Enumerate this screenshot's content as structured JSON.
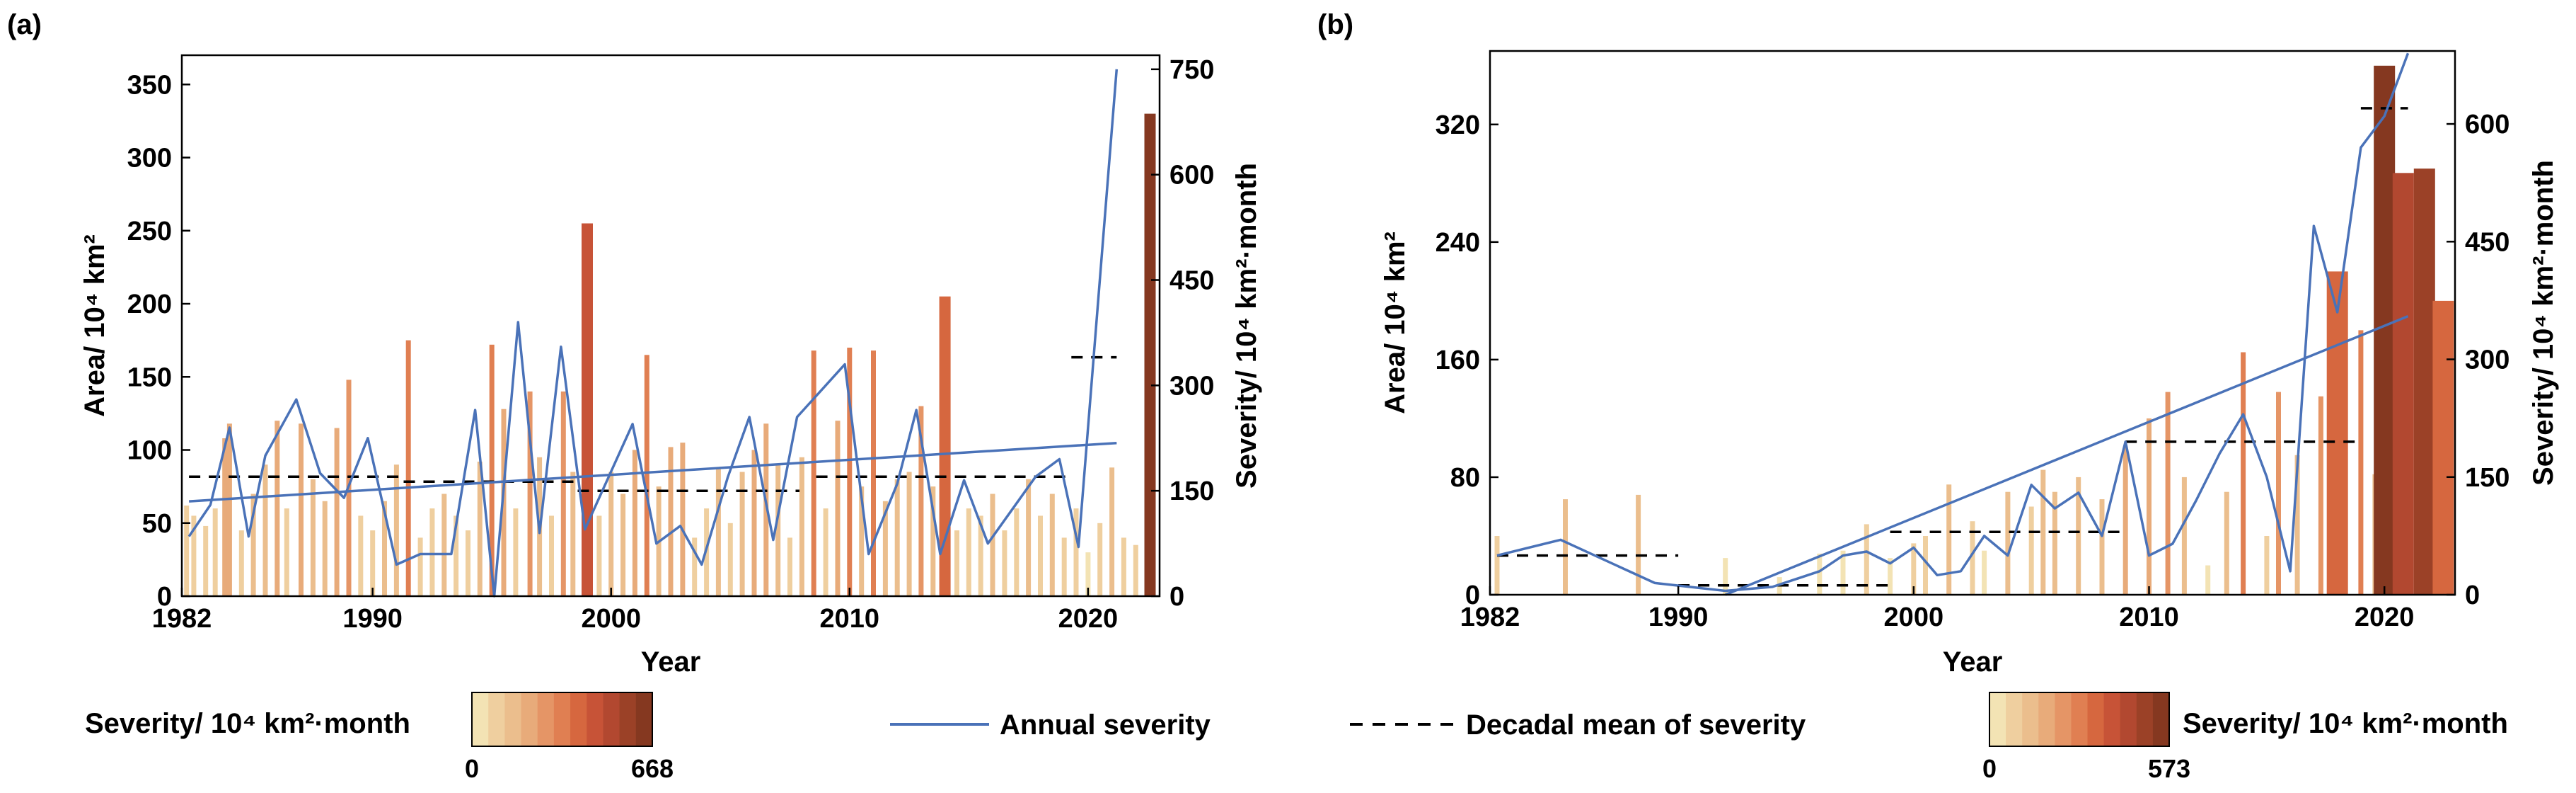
{
  "chart_data": [
    {
      "type": "bar",
      "panel_label": "(a)",
      "xlabel": "Year",
      "ylabel": "Area/ 10⁴ km²",
      "ylabel_right": "Severity/ 10⁴ km²·month",
      "xlim": [
        1982,
        2023
      ],
      "ylim": [
        0,
        370
      ],
      "ylim_right": [
        0,
        770
      ],
      "x_ticks": [
        "1982",
        "1990",
        "2000",
        "2010",
        "2020"
      ],
      "y_ticks": [
        "0",
        "50",
        "100",
        "150",
        "200",
        "250",
        "300",
        "350"
      ],
      "y_ticks_right": [
        "0",
        "150",
        "300",
        "450",
        "600",
        "750"
      ],
      "colorbar": {
        "label": "Severity/ 10⁴ km²·month",
        "min": "0",
        "max": "668"
      },
      "bars": [
        {
          "x": 1982.2,
          "y": 62
        },
        {
          "x": 1982.5,
          "y": 55
        },
        {
          "x": 1983.0,
          "y": 48
        },
        {
          "x": 1983.4,
          "y": 60
        },
        {
          "x": 1983.8,
          "y": 108
        },
        {
          "x": 1984.0,
          "y": 118
        },
        {
          "x": 1984.5,
          "y": 45
        },
        {
          "x": 1985.0,
          "y": 70
        },
        {
          "x": 1985.5,
          "y": 90
        },
        {
          "x": 1986.0,
          "y": 120
        },
        {
          "x": 1986.4,
          "y": 60
        },
        {
          "x": 1987.0,
          "y": 118
        },
        {
          "x": 1987.5,
          "y": 80
        },
        {
          "x": 1988.0,
          "y": 65
        },
        {
          "x": 1988.5,
          "y": 115
        },
        {
          "x": 1989.0,
          "y": 148
        },
        {
          "x": 1989.5,
          "y": 55
        },
        {
          "x": 1990.0,
          "y": 45
        },
        {
          "x": 1990.5,
          "y": 65
        },
        {
          "x": 1991.0,
          "y": 90
        },
        {
          "x": 1991.5,
          "y": 175
        },
        {
          "x": 1992.0,
          "y": 40
        },
        {
          "x": 1992.5,
          "y": 60
        },
        {
          "x": 1993.0,
          "y": 70
        },
        {
          "x": 1993.5,
          "y": 55
        },
        {
          "x": 1994.0,
          "y": 45
        },
        {
          "x": 1994.5,
          "y": 92
        },
        {
          "x": 1995.0,
          "y": 172
        },
        {
          "x": 1995.5,
          "y": 128
        },
        {
          "x": 1996.0,
          "y": 60
        },
        {
          "x": 1996.6,
          "y": 140
        },
        {
          "x": 1997.0,
          "y": 95
        },
        {
          "x": 1997.5,
          "y": 55
        },
        {
          "x": 1998.0,
          "y": 140
        },
        {
          "x": 1998.4,
          "y": 85
        },
        {
          "x": 1999.0,
          "y": 255
        },
        {
          "x": 1999.5,
          "y": 55
        },
        {
          "x": 2000.0,
          "y": 85
        },
        {
          "x": 2000.5,
          "y": 70
        },
        {
          "x": 2001.0,
          "y": 100
        },
        {
          "x": 2001.5,
          "y": 165
        },
        {
          "x": 2002.0,
          "y": 75
        },
        {
          "x": 2002.5,
          "y": 102
        },
        {
          "x": 2003.0,
          "y": 105
        },
        {
          "x": 2003.5,
          "y": 40
        },
        {
          "x": 2004.0,
          "y": 60
        },
        {
          "x": 2004.5,
          "y": 88
        },
        {
          "x": 2005.0,
          "y": 50
        },
        {
          "x": 2005.5,
          "y": 85
        },
        {
          "x": 2006.0,
          "y": 100
        },
        {
          "x": 2006.5,
          "y": 118
        },
        {
          "x": 2007.0,
          "y": 90
        },
        {
          "x": 2007.5,
          "y": 40
        },
        {
          "x": 2008.0,
          "y": 95
        },
        {
          "x": 2008.5,
          "y": 168
        },
        {
          "x": 2009.0,
          "y": 60
        },
        {
          "x": 2009.5,
          "y": 120
        },
        {
          "x": 2010.0,
          "y": 170
        },
        {
          "x": 2010.5,
          "y": 75
        },
        {
          "x": 2011.0,
          "y": 168
        },
        {
          "x": 2011.5,
          "y": 65
        },
        {
          "x": 2012.0,
          "y": 80
        },
        {
          "x": 2012.5,
          "y": 85
        },
        {
          "x": 2013.0,
          "y": 130
        },
        {
          "x": 2013.5,
          "y": 75
        },
        {
          "x": 2014.0,
          "y": 205
        },
        {
          "x": 2014.5,
          "y": 45
        },
        {
          "x": 2015.0,
          "y": 60
        },
        {
          "x": 2015.5,
          "y": 55
        },
        {
          "x": 2016.0,
          "y": 70
        },
        {
          "x": 2016.5,
          "y": 45
        },
        {
          "x": 2017.0,
          "y": 60
        },
        {
          "x": 2017.5,
          "y": 80
        },
        {
          "x": 2018.0,
          "y": 55
        },
        {
          "x": 2018.5,
          "y": 70
        },
        {
          "x": 2019.0,
          "y": 40
        },
        {
          "x": 2019.5,
          "y": 60
        },
        {
          "x": 2020.0,
          "y": 30
        },
        {
          "x": 2020.5,
          "y": 50
        },
        {
          "x": 2021.0,
          "y": 88
        },
        {
          "x": 2021.5,
          "y": 40
        },
        {
          "x": 2022.0,
          "y": 35
        },
        {
          "x": 2022.6,
          "y": 330
        }
      ],
      "annual_severity": [
        {
          "x": 1982.3,
          "y": 85
        },
        {
          "x": 1983.2,
          "y": 130
        },
        {
          "x": 1984.0,
          "y": 240
        },
        {
          "x": 1984.8,
          "y": 85
        },
        {
          "x": 1985.5,
          "y": 200
        },
        {
          "x": 1986.8,
          "y": 280
        },
        {
          "x": 1987.8,
          "y": 175
        },
        {
          "x": 1988.8,
          "y": 140
        },
        {
          "x": 1989.8,
          "y": 225
        },
        {
          "x": 1991.0,
          "y": 45
        },
        {
          "x": 1992.0,
          "y": 60
        },
        {
          "x": 1993.3,
          "y": 60
        },
        {
          "x": 1994.3,
          "y": 265
        },
        {
          "x": 1995.1,
          "y": 0
        },
        {
          "x": 1996.1,
          "y": 390
        },
        {
          "x": 1997.0,
          "y": 90
        },
        {
          "x": 1997.9,
          "y": 355
        },
        {
          "x": 1998.9,
          "y": 95
        },
        {
          "x": 1999.9,
          "y": 170
        },
        {
          "x": 2000.9,
          "y": 245
        },
        {
          "x": 2001.9,
          "y": 75
        },
        {
          "x": 2002.9,
          "y": 100
        },
        {
          "x": 2003.8,
          "y": 45
        },
        {
          "x": 2004.9,
          "y": 170
        },
        {
          "x": 2005.8,
          "y": 255
        },
        {
          "x": 2006.8,
          "y": 80
        },
        {
          "x": 2007.8,
          "y": 255
        },
        {
          "x": 2009.8,
          "y": 330
        },
        {
          "x": 2010.8,
          "y": 60
        },
        {
          "x": 2012.0,
          "y": 160
        },
        {
          "x": 2012.8,
          "y": 265
        },
        {
          "x": 2013.8,
          "y": 60
        },
        {
          "x": 2014.8,
          "y": 165
        },
        {
          "x": 2015.8,
          "y": 75
        },
        {
          "x": 2017.8,
          "y": 170
        },
        {
          "x": 2018.8,
          "y": 195
        },
        {
          "x": 2019.6,
          "y": 70
        },
        {
          "x": 2021.2,
          "y": 750
        }
      ],
      "trend_line": [
        {
          "x": 1982.3,
          "y": 135
        },
        {
          "x": 2021.2,
          "y": 218
        }
      ],
      "decadal_means": [
        {
          "x0": 1982.3,
          "x1": 1991.3,
          "y": 170
        },
        {
          "x0": 1991.3,
          "x1": 1998.6,
          "y": 163
        },
        {
          "x0": 1998.6,
          "x1": 2007.9,
          "y": 150
        },
        {
          "x0": 2008.6,
          "x1": 2019.3,
          "y": 170
        },
        {
          "x0": 2019.3,
          "x1": 2021.2,
          "y": 340
        }
      ]
    },
    {
      "type": "bar",
      "panel_label": "(b)",
      "xlabel": "Year",
      "ylabel": "Area/ 10⁴ km²",
      "ylabel_right": "Severity/ 10⁴ km²·month",
      "xlim": [
        1982,
        2023
      ],
      "ylim": [
        0,
        370
      ],
      "ylim_right": [
        0,
        693
      ],
      "x_ticks": [
        "1982",
        "1990",
        "2000",
        "2010",
        "2020"
      ],
      "y_ticks": [
        "0",
        "80",
        "160",
        "240",
        "320"
      ],
      "y_ticks_right": [
        "0",
        "150",
        "300",
        "450",
        "600"
      ],
      "colorbar": {
        "label": "Severity/ 10⁴ km²·month",
        "min": "0",
        "max": "573"
      },
      "bars": [
        {
          "x": 1982.3,
          "y": 40
        },
        {
          "x": 1985.2,
          "y": 65
        },
        {
          "x": 1988.3,
          "y": 68
        },
        {
          "x": 1992.0,
          "y": 25
        },
        {
          "x": 1994.3,
          "y": 12
        },
        {
          "x": 1996.0,
          "y": 28
        },
        {
          "x": 1997.0,
          "y": 30
        },
        {
          "x": 1998.0,
          "y": 48
        },
        {
          "x": 1999.0,
          "y": 25
        },
        {
          "x": 2000.0,
          "y": 35
        },
        {
          "x": 2000.5,
          "y": 40
        },
        {
          "x": 2001.5,
          "y": 75
        },
        {
          "x": 2002.5,
          "y": 50
        },
        {
          "x": 2003.0,
          "y": 30
        },
        {
          "x": 2004.0,
          "y": 70
        },
        {
          "x": 2005.0,
          "y": 60
        },
        {
          "x": 2005.5,
          "y": 85
        },
        {
          "x": 2006.0,
          "y": 70
        },
        {
          "x": 2007.0,
          "y": 80
        },
        {
          "x": 2008.0,
          "y": 65
        },
        {
          "x": 2009.0,
          "y": 100
        },
        {
          "x": 2010.0,
          "y": 120
        },
        {
          "x": 2010.8,
          "y": 138
        },
        {
          "x": 2011.5,
          "y": 80
        },
        {
          "x": 2012.5,
          "y": 20
        },
        {
          "x": 2013.3,
          "y": 70
        },
        {
          "x": 2014.0,
          "y": 165
        },
        {
          "x": 2015.0,
          "y": 40
        },
        {
          "x": 2015.5,
          "y": 138
        },
        {
          "x": 2016.3,
          "y": 95
        },
        {
          "x": 2017.3,
          "y": 135
        },
        {
          "x": 2018.0,
          "y": 220
        },
        {
          "x": 2019.0,
          "y": 180
        },
        {
          "x": 2019.6,
          "y": 82
        },
        {
          "x": 2020.0,
          "y": 360
        },
        {
          "x": 2020.8,
          "y": 287
        },
        {
          "x": 2021.7,
          "y": 290
        },
        {
          "x": 2022.5,
          "y": 200
        }
      ],
      "annual_severity": [
        {
          "x": 1982.3,
          "y": 50
        },
        {
          "x": 1985.0,
          "y": 70
        },
        {
          "x": 1989.0,
          "y": 15
        },
        {
          "x": 1992.0,
          "y": 5
        },
        {
          "x": 1994.0,
          "y": 10
        },
        {
          "x": 1996.0,
          "y": 30
        },
        {
          "x": 1997.0,
          "y": 50
        },
        {
          "x": 1998.0,
          "y": 55
        },
        {
          "x": 1999.0,
          "y": 40
        },
        {
          "x": 2000.0,
          "y": 60
        },
        {
          "x": 2001.0,
          "y": 25
        },
        {
          "x": 2002.0,
          "y": 30
        },
        {
          "x": 2003.0,
          "y": 75
        },
        {
          "x": 2004.0,
          "y": 50
        },
        {
          "x": 2005.0,
          "y": 140
        },
        {
          "x": 2006.0,
          "y": 110
        },
        {
          "x": 2007.0,
          "y": 130
        },
        {
          "x": 2008.0,
          "y": 75
        },
        {
          "x": 2009.0,
          "y": 195
        },
        {
          "x": 2010.0,
          "y": 50
        },
        {
          "x": 2011.0,
          "y": 65
        },
        {
          "x": 2012.0,
          "y": 120
        },
        {
          "x": 2013.0,
          "y": 180
        },
        {
          "x": 2014.0,
          "y": 230
        },
        {
          "x": 2015.0,
          "y": 150
        },
        {
          "x": 2016.0,
          "y": 30
        },
        {
          "x": 2017.0,
          "y": 470
        },
        {
          "x": 2018.0,
          "y": 360
        },
        {
          "x": 2019.0,
          "y": 570
        },
        {
          "x": 2020.0,
          "y": 610
        },
        {
          "x": 2021.0,
          "y": 690
        }
      ],
      "trend_line": [
        {
          "x": 1992.0,
          "y": 0
        },
        {
          "x": 2021.0,
          "y": 355
        }
      ],
      "decadal_means": [
        {
          "x0": 1982.3,
          "x1": 1990.0,
          "y": 50
        },
        {
          "x0": 1990.0,
          "x1": 1999.0,
          "y": 12
        },
        {
          "x0": 1999.0,
          "x1": 2009.0,
          "y": 80
        },
        {
          "x0": 2009.0,
          "x1": 2019.0,
          "y": 195
        },
        {
          "x0": 2019.0,
          "x1": 2021.0,
          "y": 620
        }
      ]
    }
  ],
  "legend": {
    "annual": "Annual severity",
    "decadal": "Decadal mean of severity"
  },
  "colors": {
    "line": "#4a72b8",
    "colorbar_a": [
      "#f3e3b4",
      "#efcf9f",
      "#ebbe8d",
      "#e8ab7a",
      "#e59566",
      "#e07f52",
      "#d6673f",
      "#c75337",
      "#b24830",
      "#9b4127",
      "#853820"
    ],
    "colorbar_b": [
      "#f3e3b4",
      "#efcf9f",
      "#ebbe8d",
      "#e8ab7a",
      "#e59566",
      "#e07f52",
      "#d6673f",
      "#c75337",
      "#b24830",
      "#9b4127",
      "#853820"
    ]
  }
}
